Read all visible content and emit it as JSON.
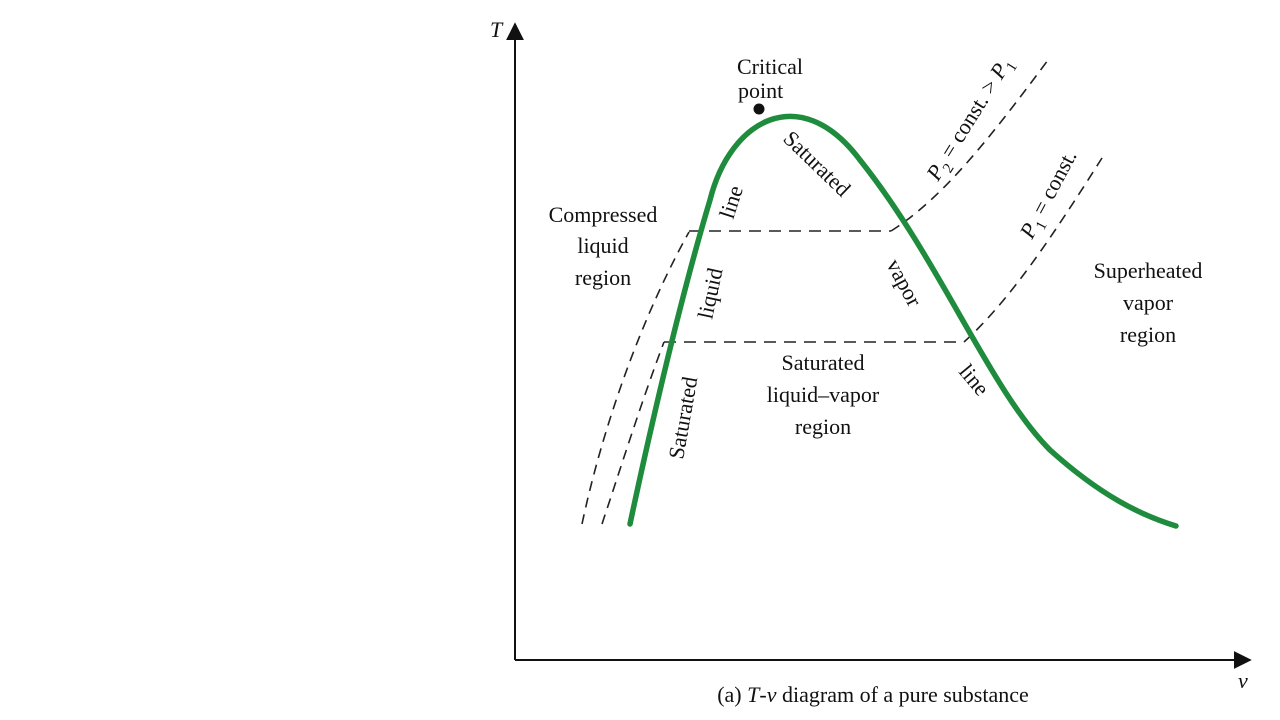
{
  "diagram": {
    "axes": {
      "y_label": "T",
      "x_label": "v"
    },
    "critical_point": {
      "line1": "Critical",
      "line2": "point"
    },
    "regions": {
      "compressed": [
        "Compressed",
        "liquid",
        "region"
      ],
      "superheated": [
        "Superheated",
        "vapor",
        "region"
      ],
      "mixture": [
        "Saturated",
        "liquid–vapor",
        "region"
      ]
    },
    "sat_liquid_line": {
      "word1": "Saturated",
      "word2": "liquid",
      "word3": "line"
    },
    "sat_vapor_line": {
      "word1": "Saturated",
      "word2": "vapor",
      "word3": "line"
    },
    "isobars": {
      "p2": {
        "symbol": "P",
        "subscript": "2",
        "text": " = const. > ",
        "ref_symbol": "P",
        "ref_subscript": "1"
      },
      "p1": {
        "symbol": "P",
        "subscript": "1",
        "text": " = const."
      }
    },
    "caption": {
      "part": "(a)",
      "symbol": "T",
      "sep": "-",
      "symbol2": "v",
      "rest": " diagram of a pure substance"
    },
    "colors": {
      "saturation_curve": "#1e8c3c",
      "axis": "#111111",
      "isobar": "#222222"
    }
  }
}
